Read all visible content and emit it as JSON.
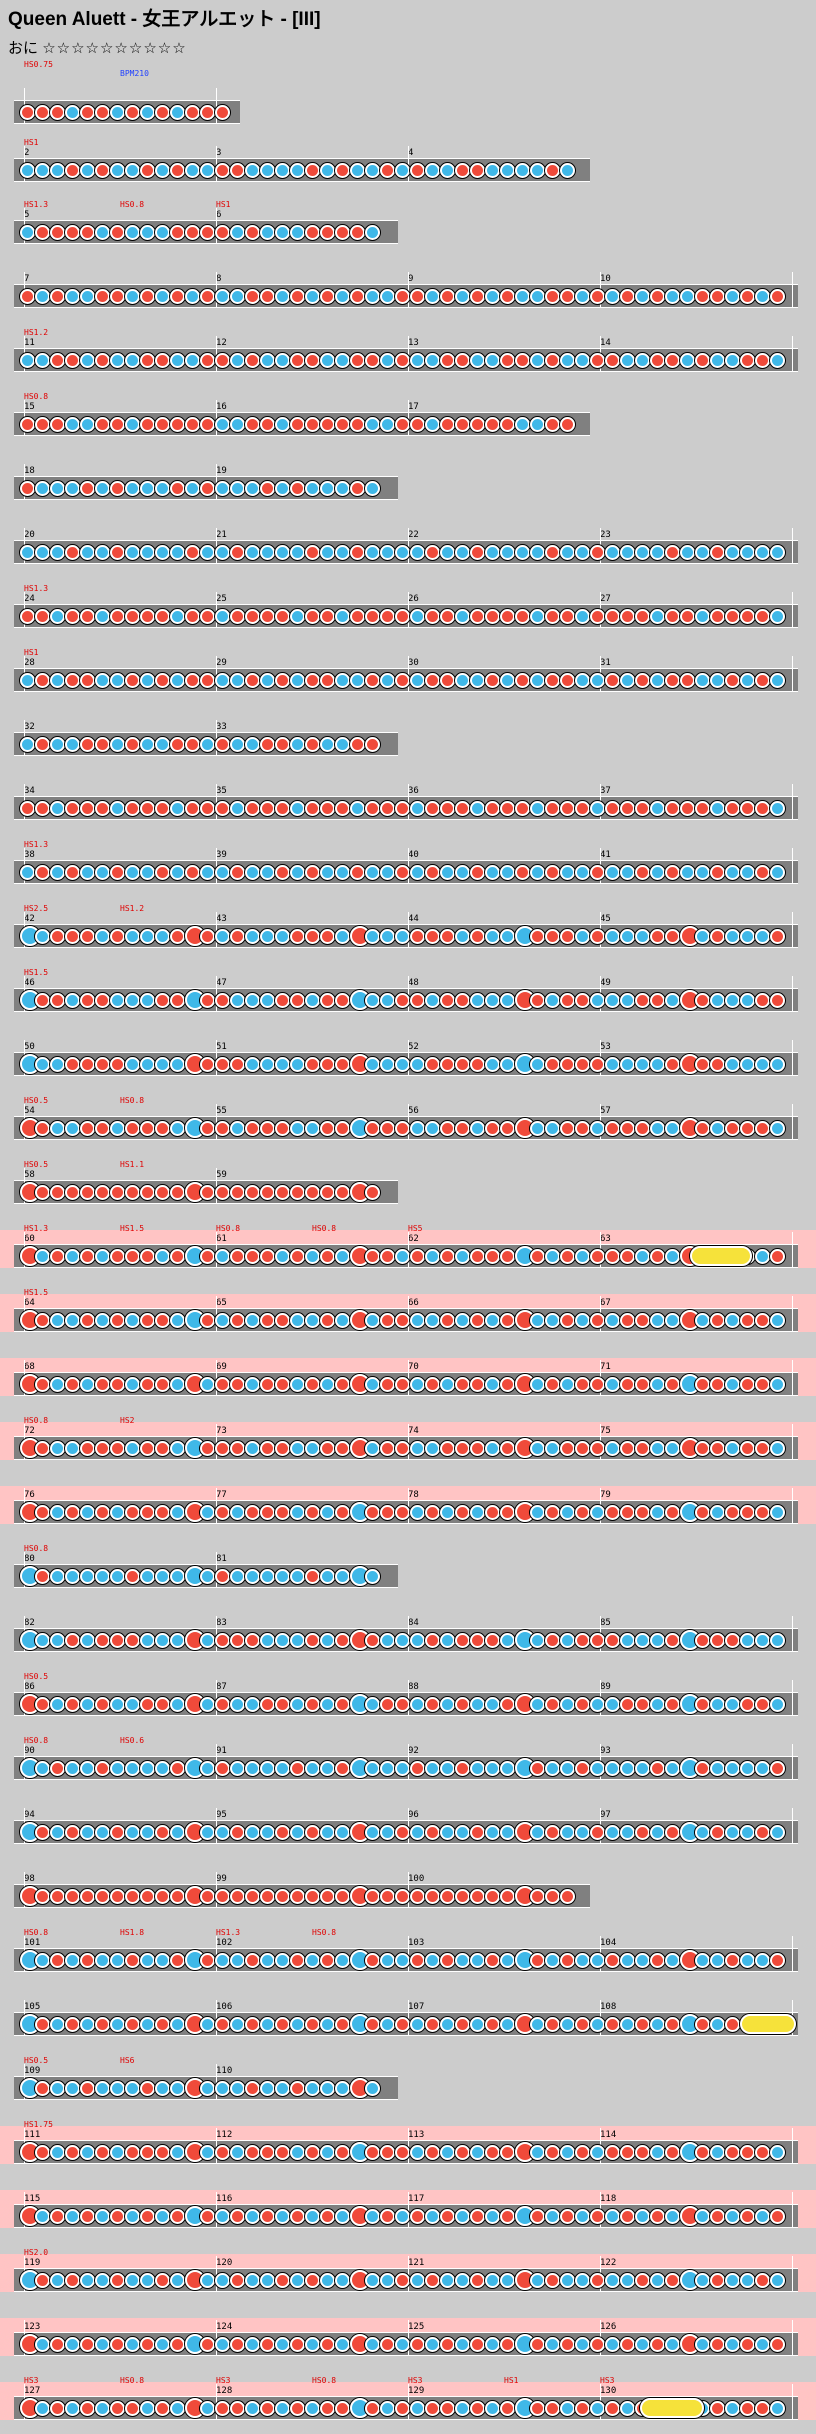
{
  "title": "Queen Aluett - 女王アルエット - [III]",
  "difficulty": {
    "label": "おに",
    "stars": "☆☆☆☆☆☆☆☆☆☆"
  },
  "colors": {
    "background": "#cccccc",
    "lane": "#808080",
    "don": "#f04a3a",
    "ka": "#3fb8e8",
    "roll": "#f6e23a",
    "gogo": "#ffc4c4",
    "hs_text": "#e00000"
  },
  "rows": [
    {
      "measures": [],
      "hs": [
        "HS0.75",
        "BPM210"
      ],
      "pattern": "dddkddkdkdkd"
    },
    {
      "measures": [
        "2",
        "3",
        "4"
      ],
      "hs": [
        "HS1"
      ],
      "pattern": "kkkdkdkkdkdkkddk"
    },
    {
      "measures": [
        "5",
        "6"
      ],
      "hs": [
        "HS1.3",
        "HS0.8",
        "HS1"
      ],
      "pattern": "kddddkdkk"
    },
    {
      "measures": [
        "7",
        "8",
        "9",
        "10"
      ],
      "hs": [],
      "pattern": "dkdkkddkdk"
    },
    {
      "measures": [
        "11",
        "12",
        "13",
        "14"
      ],
      "hs": [
        "HS1.2"
      ],
      "pattern": "kkddkdkkdd"
    },
    {
      "measures": [
        "15",
        "16",
        "17"
      ],
      "hs": [
        "HS0.8"
      ],
      "pattern": "dddkkddkdd"
    },
    {
      "measures": [
        "18",
        "19"
      ],
      "hs": [],
      "pattern": "dkkkdk"
    },
    {
      "measures": [
        "20",
        "21",
        "22",
        "23"
      ],
      "hs": [],
      "pattern": "kkkdkkdk"
    },
    {
      "measures": [
        "24",
        "25",
        "26",
        "27"
      ],
      "hs": [
        "HS1.3"
      ],
      "pattern": "ddkddkdd"
    },
    {
      "measures": [
        "28",
        "29",
        "30",
        "31"
      ],
      "hs": [
        "HS1"
      ],
      "pattern": "kdkddkkd"
    },
    {
      "measures": [
        "32",
        "33"
      ],
      "hs": [],
      "pattern": "kdkkdd"
    },
    {
      "measures": [
        "34",
        "35",
        "36",
        "37"
      ],
      "hs": [],
      "pattern": "ddkdddkd"
    },
    {
      "measures": [
        "38",
        "39",
        "40",
        "41"
      ],
      "hs": [
        "HS1.3"
      ],
      "pattern": "kdkdkkdk"
    },
    {
      "measures": [
        "42",
        "43",
        "44",
        "45"
      ],
      "hs": [
        "HS2.5",
        "HS1.2"
      ],
      "pattern": "kkdddkdk"
    },
    {
      "measures": [
        "46",
        "47",
        "48",
        "49"
      ],
      "hs": [
        "HS1.5"
      ],
      "pattern": "kddkddkk"
    },
    {
      "measures": [
        "50",
        "51",
        "52",
        "53"
      ],
      "hs": [],
      "pattern": "kkkddddk"
    },
    {
      "measures": [
        "54",
        "55",
        "56",
        "57"
      ],
      "hs": [
        "HS0.5",
        "HS0.8"
      ],
      "pattern": "ddkkddkd"
    },
    {
      "measures": [
        "58",
        "59"
      ],
      "hs": [
        "HS0.5",
        "HS1.1"
      ],
      "pattern": "ddddddd"
    },
    {
      "measures": [
        "60",
        "61",
        "62",
        "63"
      ],
      "hs": [
        "HS1.3",
        "HS1.5",
        "HS0.8",
        "HS0.8",
        "HS5"
      ],
      "pattern": "dkdkdkdd"
    },
    {
      "measures": [
        "64",
        "65",
        "66",
        "67"
      ],
      "hs": [
        "HS1.5"
      ],
      "pattern": "ddkkdkdk"
    },
    {
      "measures": [
        "68",
        "69",
        "70",
        "71"
      ],
      "hs": [],
      "pattern": "ddkdkddk"
    },
    {
      "measures": [
        "72",
        "73",
        "74",
        "75"
      ],
      "hs": [
        "HS0.8",
        "HS2"
      ],
      "pattern": "ddkkdddk"
    },
    {
      "measures": [
        "76",
        "77",
        "78",
        "79"
      ],
      "hs": [],
      "pattern": "ddkdkdkd"
    },
    {
      "measures": [
        "80",
        "81"
      ],
      "hs": [
        "HS0.8"
      ],
      "pattern": "kdkkkk"
    },
    {
      "measures": [
        "82",
        "83",
        "84",
        "85"
      ],
      "hs": [],
      "pattern": "kkkdkddd"
    },
    {
      "measures": [
        "86",
        "87",
        "88",
        "89"
      ],
      "hs": [
        "HS0.5"
      ],
      "pattern": "ddkdkdkk"
    },
    {
      "measures": [
        "90",
        "91",
        "92",
        "93"
      ],
      "hs": [
        "HS0.8",
        "HS0.6"
      ],
      "pattern": "kkdkkdkk"
    },
    {
      "measures": [
        "94",
        "95",
        "96",
        "97"
      ],
      "hs": [],
      "pattern": "kdkdkkdk"
    },
    {
      "measures": [
        "98",
        "99",
        "100"
      ],
      "hs": [],
      "pattern": "dddddd"
    },
    {
      "measures": [
        "101",
        "102",
        "103",
        "104"
      ],
      "hs": [
        "HS0.8",
        "HS1.8",
        "HS1.3",
        "HS0.8"
      ],
      "pattern": "kkdkdkkd"
    },
    {
      "measures": [
        "105",
        "106",
        "107",
        "108"
      ],
      "hs": [],
      "pattern": "kdkdkdkd"
    },
    {
      "measures": [
        "109",
        "110"
      ],
      "hs": [
        "HS0.5",
        "HS6"
      ],
      "pattern": "kdkkdkk"
    },
    {
      "measures": [
        "111",
        "112",
        "113",
        "114"
      ],
      "hs": [
        "HS1.75"
      ],
      "pattern": "ddkdkdkd"
    },
    {
      "measures": [
        "115",
        "116",
        "117",
        "118"
      ],
      "hs": [],
      "pattern": "dkdkdkdk"
    },
    {
      "measures": [
        "119",
        "120",
        "121",
        "122"
      ],
      "hs": [
        "HS2.0"
      ],
      "pattern": "kdkdkkdk"
    },
    {
      "measures": [
        "123",
        "124",
        "125",
        "126"
      ],
      "hs": [],
      "pattern": "dkdkdkdk"
    },
    {
      "measures": [
        "127",
        "128",
        "129",
        "130"
      ],
      "hs": [
        "HS3",
        "HS0.8",
        "HS3",
        "HS0.8",
        "HS3",
        "HS1",
        "HS3"
      ],
      "pattern": "dkdkdkd"
    }
  ]
}
